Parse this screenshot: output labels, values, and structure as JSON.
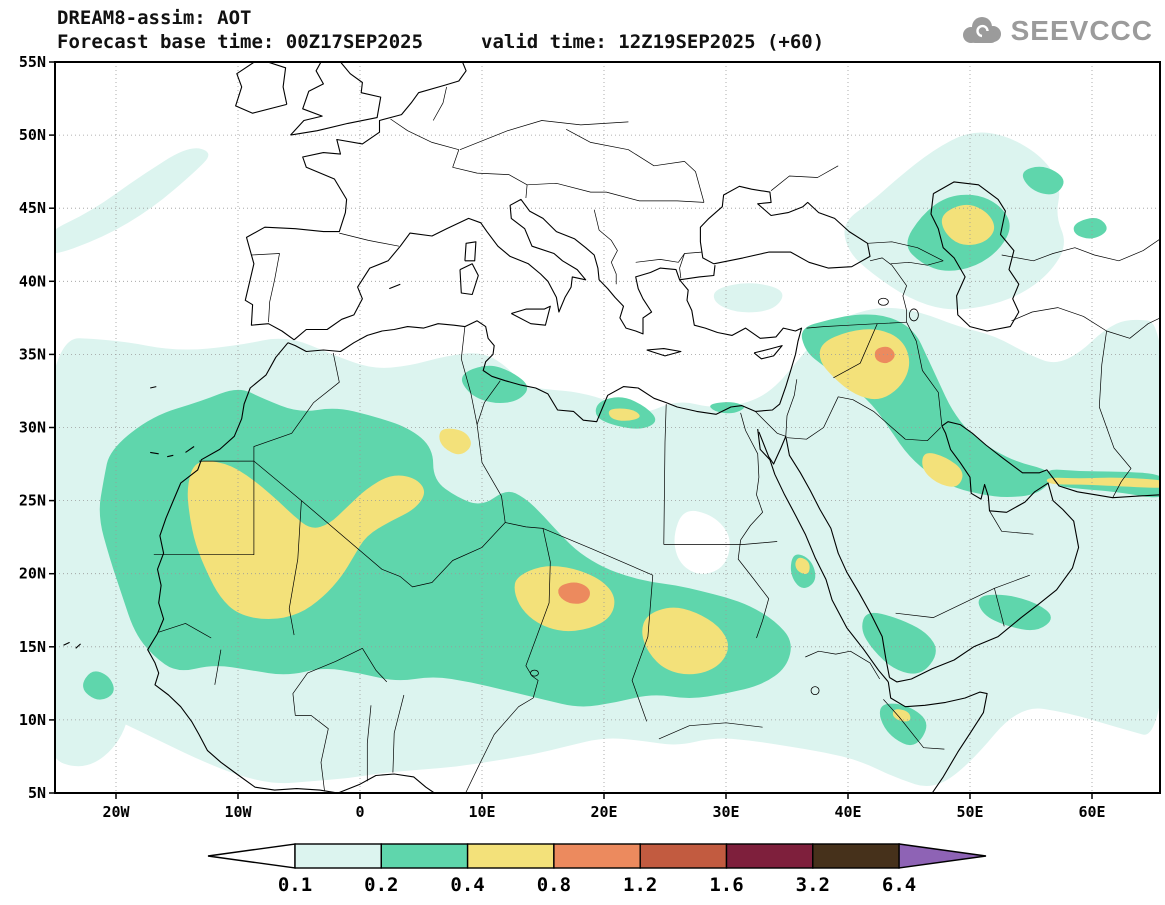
{
  "header": {
    "model_title": "DREAM8-assim: AOT",
    "forecast_base": "Forecast base time: 00Z17SEP2025",
    "valid_time": "valid time: 12Z19SEP2025 (+60)"
  },
  "logo": {
    "text": "SEEVCCC",
    "icon": "cloud-icon",
    "color": "#9b9b9b"
  },
  "map": {
    "variable": "AOT",
    "lat_tick_labels": [
      "55N",
      "50N",
      "45N",
      "40N",
      "35N",
      "30N",
      "25N",
      "20N",
      "15N",
      "10N",
      "5N"
    ],
    "lon_tick_labels": [
      "20W",
      "10W",
      "0",
      "10E",
      "20E",
      "30E",
      "40E",
      "50E",
      "60E"
    ]
  },
  "colorbar": {
    "tick_labels": [
      "0.1",
      "0.2",
      "0.4",
      "0.8",
      "1.2",
      "1.6",
      "3.2",
      "6.4"
    ],
    "segment_colors": [
      "#ffffff",
      "#dcf4ef",
      "#5fd6ac",
      "#f3e17a",
      "#ec8a5e",
      "#c25b40",
      "#7e1f3c",
      "#46311b",
      "#8e63b5"
    ],
    "outline_color": "#000000"
  }
}
